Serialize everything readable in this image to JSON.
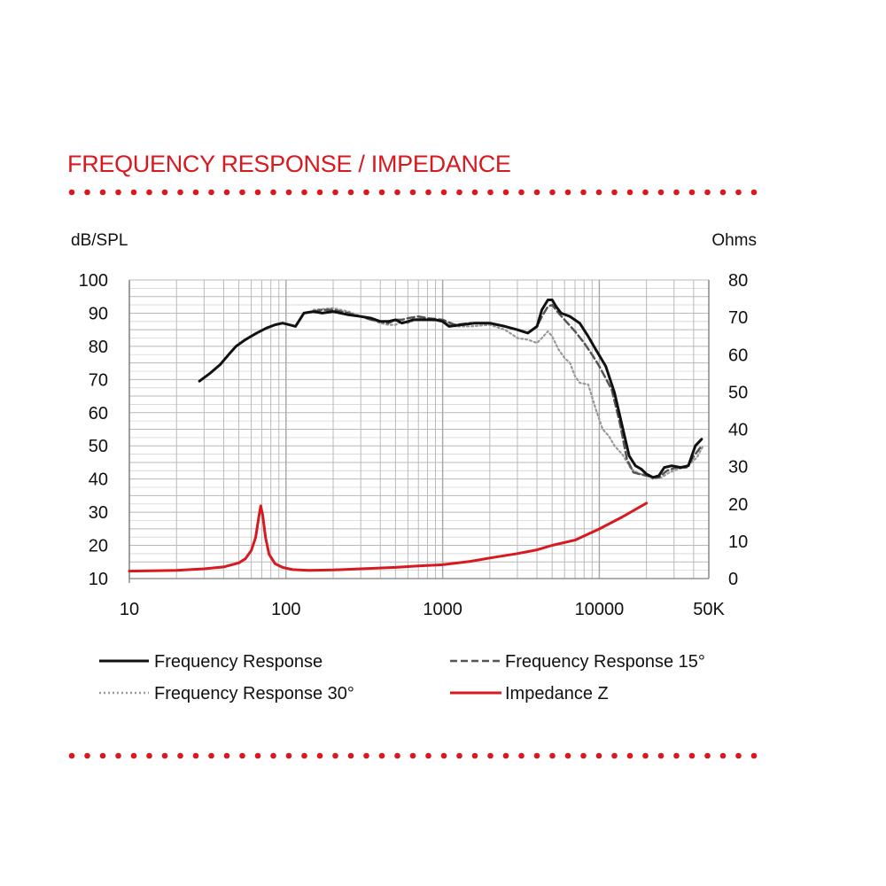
{
  "header": {
    "title": "FREQUENCY RESPONSE / IMPEDANCE"
  },
  "colors": {
    "accent": "#d71920",
    "response": "#111111",
    "response15": "#555555",
    "response30": "#999999",
    "grid": "#b9b9b9"
  },
  "chart_data": {
    "type": "line",
    "x_scale": "log",
    "xlim": [
      10,
      50000
    ],
    "ylim": [
      10,
      100
    ],
    "y2lim": [
      0,
      80
    ],
    "ylabel": "dB/SPL",
    "y2label": "Ohms",
    "grid": true,
    "legend_position": "bottom",
    "x_ticks": [
      "10",
      "100",
      "1000",
      "10000",
      "50K"
    ],
    "y_ticks": [
      "100",
      "90",
      "80",
      "70",
      "60",
      "50",
      "40",
      "30",
      "20",
      "10"
    ],
    "y2_ticks": [
      "80",
      "70",
      "60",
      "50",
      "40",
      "30",
      "20",
      "10",
      "0"
    ],
    "series": [
      {
        "name": "Frequency Response",
        "axis": "left",
        "x": [
          28,
          33,
          38,
          43,
          48,
          55,
          65,
          75,
          85,
          95,
          105,
          115,
          130,
          150,
          170,
          200,
          250,
          300,
          350,
          400,
          450,
          500,
          550,
          600,
          650,
          700,
          800,
          900,
          1000,
          1100,
          1300,
          1600,
          2000,
          2500,
          3000,
          3500,
          4000,
          4300,
          4700,
          5000,
          5300,
          5700,
          6500,
          7500,
          8500,
          9500,
          11000,
          12500,
          14000,
          15500,
          17000,
          18500,
          20000,
          22000,
          24000,
          26000,
          29000,
          33000,
          37000,
          41000,
          45000
        ],
        "y": [
          69.5,
          72,
          74.5,
          77.5,
          80,
          82,
          84,
          85.5,
          86.5,
          87,
          86.5,
          86,
          90,
          90.5,
          90,
          90.5,
          89.5,
          89,
          88.5,
          87.5,
          87.5,
          88,
          87,
          87.5,
          88,
          88,
          88,
          88,
          87.5,
          86,
          86.5,
          87,
          87,
          86,
          85,
          84,
          86,
          91,
          94,
          94,
          92,
          90,
          89,
          87,
          83,
          79,
          74,
          66,
          56,
          47,
          44,
          43,
          41.5,
          40.5,
          41,
          43.5,
          44,
          43.5,
          44,
          50,
          52
        ]
      },
      {
        "name": "Frequency Response 15°",
        "axis": "left",
        "x": [
          130,
          150,
          170,
          200,
          250,
          300,
          350,
          400,
          450,
          500,
          550,
          600,
          700,
          800,
          1000,
          1200,
          1500,
          2000,
          2500,
          3000,
          3500,
          4000,
          4300,
          4700,
          5000,
          5500,
          6000,
          7000,
          8000,
          9000,
          10000,
          12000,
          13500,
          15000,
          16500,
          18000,
          20000,
          22000,
          24000,
          27000,
          31000,
          36000,
          41000,
          45000
        ],
        "y": [
          90,
          90.5,
          91,
          91,
          90,
          89,
          88,
          87.5,
          87,
          88,
          88,
          88.5,
          89,
          88.5,
          88,
          86.5,
          87,
          87,
          86,
          85,
          84,
          86,
          89,
          92,
          92.5,
          90,
          88,
          84.5,
          81,
          77.5,
          74,
          67,
          57,
          46,
          42,
          41.5,
          41,
          40.5,
          40.5,
          42.5,
          43.5,
          43.5,
          47.5,
          50
        ]
      },
      {
        "name": "Frequency Response 30°",
        "axis": "left",
        "x": [
          150,
          200,
          250,
          300,
          350,
          400,
          450,
          500,
          550,
          600,
          700,
          800,
          1000,
          1200,
          1500,
          2000,
          2500,
          3000,
          3500,
          4000,
          4300,
          4700,
          5000,
          5500,
          6000,
          6500,
          7000,
          7500,
          8500,
          9500,
          10500,
          11500,
          12500,
          14000,
          16000,
          18000,
          20000,
          22000,
          25000,
          28000,
          32000,
          37000,
          42000,
          46000
        ],
        "y": [
          91,
          91.5,
          90.5,
          89,
          88,
          87,
          86.5,
          86.5,
          87.5,
          87,
          88.5,
          88,
          87.5,
          86,
          86,
          86.5,
          85,
          82.5,
          82,
          81,
          82.5,
          84.5,
          83,
          79,
          76.5,
          75,
          71,
          69,
          68.5,
          61,
          55,
          53,
          50,
          47.5,
          43,
          41.5,
          41.5,
          40,
          40.5,
          42,
          43,
          44,
          46.5,
          50
        ]
      },
      {
        "name": "Impedance Z",
        "axis": "right",
        "x": [
          10,
          20,
          30,
          40,
          50,
          55,
          60,
          64,
          67,
          69,
          71,
          74,
          78,
          85,
          95,
          110,
          140,
          200,
          300,
          500,
          700,
          1000,
          1500,
          2000,
          3000,
          4000,
          5000,
          7000,
          10000,
          14000,
          20000
        ],
        "y": [
          2,
          2.2,
          2.6,
          3.1,
          4.2,
          5.3,
          7.5,
          11,
          16.5,
          19.5,
          17,
          11,
          6.5,
          4,
          3,
          2.4,
          2.2,
          2.3,
          2.6,
          3,
          3.4,
          3.7,
          4.6,
          5.5,
          6.7,
          7.7,
          8.9,
          10.3,
          13.3,
          16.5,
          20.2
        ]
      }
    ]
  },
  "legend": {
    "items": [
      {
        "label": "Frequency Response"
      },
      {
        "label": "Frequency Response 15°"
      },
      {
        "label": "Frequency Response 30°"
      },
      {
        "label": "Impedance Z"
      }
    ]
  }
}
